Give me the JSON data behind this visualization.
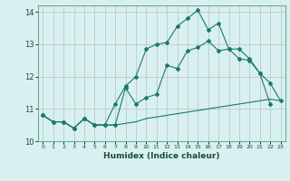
{
  "xlabel": "Humidex (Indice chaleur)",
  "background_color": "#d8f0f0",
  "grid_color": "#c0c8c8",
  "line_color": "#1a7a6a",
  "x_values": [
    0,
    1,
    2,
    3,
    4,
    5,
    6,
    7,
    8,
    9,
    10,
    11,
    12,
    13,
    14,
    15,
    16,
    17,
    18,
    19,
    20,
    21,
    22,
    23
  ],
  "line1": [
    10.8,
    10.6,
    10.6,
    10.4,
    10.7,
    10.5,
    10.5,
    10.5,
    11.65,
    11.15,
    11.35,
    11.45,
    12.35,
    12.25,
    12.8,
    12.9,
    13.1,
    12.8,
    12.85,
    12.55,
    12.5,
    12.1,
    11.8,
    11.25
  ],
  "line2": [
    10.8,
    10.6,
    10.6,
    10.4,
    10.7,
    10.5,
    10.5,
    11.15,
    11.7,
    12.0,
    12.85,
    13.0,
    13.05,
    13.55,
    13.8,
    14.05,
    13.45,
    13.65,
    12.85,
    12.85,
    12.55,
    12.1,
    11.15,
    null
  ],
  "line3": [
    10.8,
    10.6,
    10.6,
    10.4,
    10.7,
    10.5,
    10.5,
    10.5,
    10.55,
    10.6,
    10.7,
    10.75,
    10.8,
    10.85,
    10.9,
    10.95,
    11.0,
    11.05,
    11.1,
    11.15,
    11.2,
    11.25,
    11.3,
    11.25
  ],
  "ylim": [
    10.0,
    14.2
  ],
  "xlim": [
    -0.5,
    23.5
  ],
  "yticks": [
    10,
    11,
    12,
    13,
    14
  ],
  "xticks": [
    0,
    1,
    2,
    3,
    4,
    5,
    6,
    7,
    8,
    9,
    10,
    11,
    12,
    13,
    14,
    15,
    16,
    17,
    18,
    19,
    20,
    21,
    22,
    23
  ],
  "xtick_labels": [
    "0",
    "1",
    "2",
    "3",
    "4",
    "5",
    "6",
    "7",
    "8",
    "9",
    "10",
    "11",
    "12",
    "13",
    "14",
    "15",
    "16",
    "17",
    "18",
    "19",
    "20",
    "21",
    "22",
    "23"
  ]
}
